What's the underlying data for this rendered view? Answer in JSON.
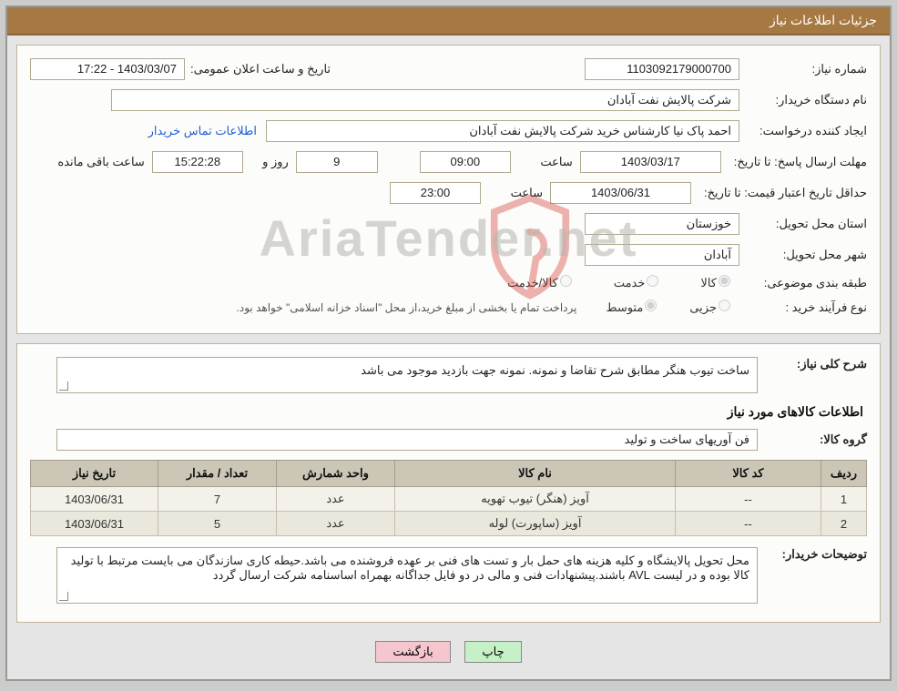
{
  "titlebar": "جزئیات اطلاعات نیاز",
  "need": {
    "number_label": "شماره نیاز:",
    "number": "1103092179000700",
    "announce_date_label": "تاریخ و ساعت اعلان عمومی:",
    "announce_date": "1403/03/07 - 17:22",
    "buyer_org_label": "نام دستگاه خریدار:",
    "buyer_org": "شرکت پالایش نفت آبادان",
    "requester_label": "ایجاد کننده درخواست:",
    "requester": "احمد پاک نیا کارشناس خرید شرکت پالایش نفت آبادان",
    "contact_link": "اطلاعات تماس خریدار",
    "deadline_label": "مهلت ارسال پاسخ: تا تاریخ:",
    "deadline_date": "1403/03/17",
    "time_word": "ساعت",
    "deadline_time": "09:00",
    "days_left": "9",
    "days_and": "روز و",
    "countdown": "15:22:28",
    "remaining_suffix": "ساعت باقی مانده",
    "quote_valid_label": "حداقل تاریخ اعتبار قیمت: تا تاریخ:",
    "quote_valid_date": "1403/06/31",
    "quote_valid_time": "23:00",
    "province_label": "استان محل تحویل:",
    "province": "خوزستان",
    "city_label": "شهر محل تحویل:",
    "city": "آبادان",
    "category_label": "طبقه بندی موضوعی:",
    "cat_goods": "کالا",
    "cat_service": "خدمت",
    "cat_goods_service": "کالا/خدمت",
    "process_label": "نوع فرآیند خرید :",
    "proc_minor": "جزیی",
    "proc_medium": "متوسط",
    "proc_note": "پرداخت تمام یا بخشی از مبلغ خرید،از محل \"اسناد خزانه اسلامی\" خواهد بود."
  },
  "need_detail": {
    "summary_label": "شرح کلی نیاز:",
    "summary": "ساخت تیوب هنگر مطابق شرح تقاضا و نمونه. نمونه جهت بازدید موجود می باشد",
    "section_heading": "اطلاعات کالاهای مورد نیاز",
    "group_label": "گروه کالا:",
    "group": "فن آوریهای ساخت و تولید",
    "buyer_notes_label": "توضیحات خریدار:",
    "buyer_notes": "محل تحویل پالایشگاه و کلیه هزینه های حمل بار و تست های فنی بر عهده فروشنده می باشد.حیطه کاری سازندگان می بایست مرتبط با تولید کالا بوده و در لیست AVL باشند.پیشنهادات فنی و مالی در دو فایل جداگانه بهمراه اساسنامه شرکت ارسال گردد"
  },
  "items_table": {
    "headers": {
      "idx": "ردیف",
      "code": "کد کالا",
      "name": "نام کالا",
      "unit": "واحد شمارش",
      "qty": "تعداد / مقدار",
      "date": "تاریخ نیاز"
    },
    "rows": [
      {
        "idx": "1",
        "code": "--",
        "name": "آویز (هنگر) تیوب تهویه",
        "unit": "عدد",
        "qty": "7",
        "date": "1403/06/31"
      },
      {
        "idx": "2",
        "code": "--",
        "name": "آویز (ساپورت) لوله",
        "unit": "عدد",
        "qty": "5",
        "date": "1403/06/31"
      }
    ]
  },
  "buttons": {
    "print": "چاپ",
    "back": "بازگشت"
  },
  "watermark": {
    "text": "AriaTender.net"
  },
  "colors": {
    "titlebar_bg": "#a67842",
    "panel_border": "#c0b59e",
    "field_border": "#b0a98e",
    "table_header_bg": "#cbc6b6",
    "table_row_bg": "#f3f1ea",
    "link": "#1a5fd6",
    "btn_print_bg": "#c6f0c6",
    "btn_back_bg": "#f6c6cf",
    "watermark_color": "#b7b4ae",
    "shield_stroke": "#d43a2f"
  }
}
